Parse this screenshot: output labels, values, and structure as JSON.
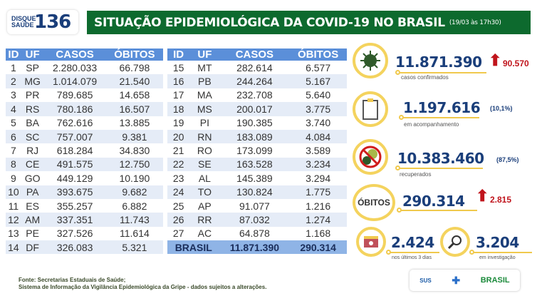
{
  "logo": {
    "line1": "DISQUE",
    "line2": "SAÚDE",
    "number": "136"
  },
  "header": {
    "title": "SITUAÇÃO EPIDEMIOLÓGICA DA COVID-19 NO BRASIL",
    "date": "(19/03 às 17h30)"
  },
  "table": {
    "columns": [
      "ID",
      "UF",
      "CASOS",
      "ÓBITOS"
    ],
    "left": [
      [
        "1",
        "SP",
        "2.280.033",
        "66.798"
      ],
      [
        "2",
        "MG",
        "1.014.079",
        "21.540"
      ],
      [
        "3",
        "PR",
        "789.685",
        "14.658"
      ],
      [
        "4",
        "RS",
        "780.186",
        "16.507"
      ],
      [
        "5",
        "BA",
        "762.616",
        "13.885"
      ],
      [
        "6",
        "SC",
        "757.007",
        "9.381"
      ],
      [
        "7",
        "RJ",
        "618.284",
        "34.830"
      ],
      [
        "8",
        "CE",
        "491.575",
        "12.750"
      ],
      [
        "9",
        "GO",
        "449.129",
        "10.190"
      ],
      [
        "10",
        "PA",
        "393.675",
        "9.682"
      ],
      [
        "11",
        "ES",
        "355.257",
        "6.882"
      ],
      [
        "12",
        "AM",
        "337.351",
        "11.743"
      ],
      [
        "13",
        "PE",
        "327.526",
        "11.614"
      ],
      [
        "14",
        "DF",
        "326.083",
        "5.321"
      ]
    ],
    "right": [
      [
        "15",
        "MT",
        "282.614",
        "6.577"
      ],
      [
        "16",
        "PB",
        "244.264",
        "5.167"
      ],
      [
        "17",
        "MA",
        "232.708",
        "5.640"
      ],
      [
        "18",
        "MS",
        "200.017",
        "3.775"
      ],
      [
        "19",
        "PI",
        "190.385",
        "3.740"
      ],
      [
        "20",
        "RN",
        "183.089",
        "4.084"
      ],
      [
        "21",
        "RO",
        "173.099",
        "3.589"
      ],
      [
        "22",
        "SE",
        "163.528",
        "3.234"
      ],
      [
        "23",
        "AL",
        "145.389",
        "3.294"
      ],
      [
        "24",
        "TO",
        "130.824",
        "1.775"
      ],
      [
        "25",
        "AP",
        "91.077",
        "1.216"
      ],
      [
        "26",
        "RR",
        "87.032",
        "1.274"
      ],
      [
        "27",
        "AC",
        "64.878",
        "1.168"
      ]
    ],
    "total": {
      "label": "BRASIL",
      "casos": "11.871.390",
      "obitos": "290.314"
    }
  },
  "stats": {
    "confirmados": {
      "value": "11.871.390",
      "caption": "casos confirmados",
      "delta": "90.570"
    },
    "acompanhamento": {
      "value": "1.197.616",
      "pct": "(10,1%)",
      "caption": "em acompanhamento"
    },
    "recuperados": {
      "value": "10.383.460",
      "pct": "(87,5%)",
      "caption": "recuperados"
    },
    "obitos": {
      "label": "ÓBITOS",
      "value": "290.314",
      "delta": "2.815"
    },
    "ultimos": {
      "value": "2.424",
      "caption": "nos últimos 3 dias"
    },
    "investigacao": {
      "value": "3.204",
      "caption": "em investigação"
    }
  },
  "footer": {
    "line1": "Fonte: Secretarias Estaduais de Saúde;",
    "line2": "Sistema de Informação da Vigilância Epidemiológica da Gripe - dados sujeitos a alterações."
  },
  "gov": {
    "sus": "SUS",
    "brasil": "BRASIL"
  },
  "colors": {
    "banner": "#0d6a2e",
    "header": "#5b8fd9",
    "accent": "#f4d35e",
    "number": "#1a3e7a",
    "delta": "#c0141c"
  }
}
